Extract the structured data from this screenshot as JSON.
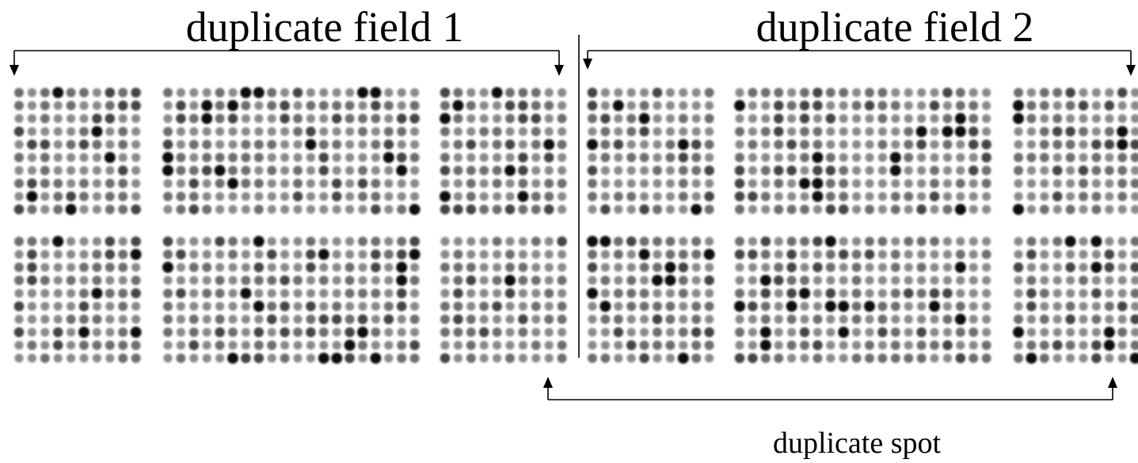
{
  "labels": {
    "field_1": "duplicate field 1",
    "field_2": "duplicate field 2",
    "spot": "duplicate spot"
  }
}
